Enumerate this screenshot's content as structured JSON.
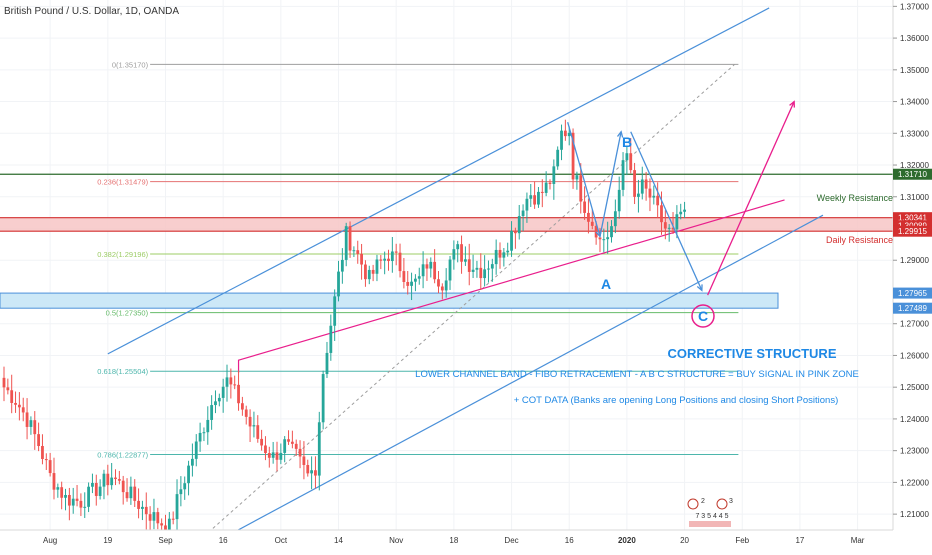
{
  "header": {
    "title": "British Pound / U.S. Dollar, 1D, OANDA"
  },
  "colors": {
    "up": "#26a69a",
    "down": "#ef5350",
    "channel": "#4a90d9",
    "pink": "#e91e8c",
    "resistance_green": "#2e6b2e",
    "resistance_red": "#d32f2f",
    "band_red": "#f7c6c6",
    "band_blue": "#cce8f7",
    "accent_blue": "#1e88e5"
  },
  "chart_data": {
    "type": "candlestick",
    "symbol": "GBPUSD",
    "ylim": [
      1.205,
      1.372
    ],
    "yticks": [
      {
        "value": 1.37,
        "label": "1.37000"
      },
      {
        "value": 1.36,
        "label": "1.36000"
      },
      {
        "value": 1.35,
        "label": "1.35000"
      },
      {
        "value": 1.34,
        "label": "1.34000"
      },
      {
        "value": 1.33,
        "label": "1.33000"
      },
      {
        "value": 1.32,
        "label": "1.32000"
      },
      {
        "value": 1.31,
        "label": "1.31000"
      },
      {
        "value": 1.3,
        "label": "1.30000"
      },
      {
        "value": 1.29,
        "label": "1.29000"
      },
      {
        "value": 1.27,
        "label": "1.27000"
      },
      {
        "value": 1.26,
        "label": "1.26000"
      },
      {
        "value": 1.25,
        "label": "1.25000"
      },
      {
        "value": 1.24,
        "label": "1.24000"
      },
      {
        "value": 1.23,
        "label": "1.23000"
      },
      {
        "value": 1.22,
        "label": "1.22000"
      },
      {
        "value": 1.21,
        "label": "1.21000"
      }
    ],
    "xticks": [
      {
        "i": 12,
        "label": "Aug",
        "bold": false
      },
      {
        "i": 27,
        "label": "19",
        "bold": false
      },
      {
        "i": 42,
        "label": "Sep",
        "bold": false
      },
      {
        "i": 57,
        "label": "16",
        "bold": false
      },
      {
        "i": 72,
        "label": "Oct",
        "bold": false
      },
      {
        "i": 87,
        "label": "14",
        "bold": false
      },
      {
        "i": 102,
        "label": "Nov",
        "bold": false
      },
      {
        "i": 117,
        "label": "18",
        "bold": false
      },
      {
        "i": 132,
        "label": "Dec",
        "bold": false
      },
      {
        "i": 147,
        "label": "16",
        "bold": false
      },
      {
        "i": 162,
        "label": "2020",
        "bold": true
      },
      {
        "i": 177,
        "label": "20",
        "bold": false
      },
      {
        "i": 192,
        "label": "Feb",
        "bold": false
      },
      {
        "i": 207,
        "label": "17",
        "bold": false
      },
      {
        "i": 222,
        "label": "Mar",
        "bold": false
      }
    ],
    "path_nodes": [
      [
        0,
        1.25
      ],
      [
        3,
        1.246
      ],
      [
        6,
        1.24
      ],
      [
        9,
        1.232
      ],
      [
        12,
        1.222
      ],
      [
        16,
        1.215
      ],
      [
        20,
        1.214
      ],
      [
        24,
        1.218
      ],
      [
        28,
        1.222
      ],
      [
        32,
        1.217
      ],
      [
        36,
        1.212
      ],
      [
        40,
        1.208
      ],
      [
        43,
        1.206
      ],
      [
        46,
        1.218
      ],
      [
        49,
        1.228
      ],
      [
        52,
        1.238
      ],
      [
        55,
        1.248
      ],
      [
        58,
        1.252
      ],
      [
        61,
        1.246
      ],
      [
        64,
        1.238
      ],
      [
        67,
        1.232
      ],
      [
        70,
        1.228
      ],
      [
        73,
        1.232
      ],
      [
        76,
        1.228
      ],
      [
        79,
        1.222
      ],
      [
        81,
        1.225
      ],
      [
        83,
        1.255
      ],
      [
        85,
        1.27
      ],
      [
        87,
        1.285
      ],
      [
        89,
        1.298
      ],
      [
        91,
        1.294
      ],
      [
        93,
        1.289
      ],
      [
        95,
        1.284
      ],
      [
        97,
        1.288
      ],
      [
        100,
        1.292
      ],
      [
        102,
        1.29
      ],
      [
        104,
        1.286
      ],
      [
        106,
        1.282
      ],
      [
        108,
        1.284
      ],
      [
        110,
        1.289
      ],
      [
        112,
        1.286
      ],
      [
        114,
        1.283
      ],
      [
        116,
        1.29
      ],
      [
        118,
        1.293
      ],
      [
        121,
        1.289
      ],
      [
        124,
        1.287
      ],
      [
        127,
        1.29
      ],
      [
        129,
        1.293
      ],
      [
        131,
        1.296
      ],
      [
        133,
        1.301
      ],
      [
        135,
        1.308
      ],
      [
        137,
        1.311
      ],
      [
        139,
        1.31
      ],
      [
        141,
        1.313
      ],
      [
        143,
        1.317
      ],
      [
        145,
        1.33
      ],
      [
        147,
        1.331
      ],
      [
        148,
        1.318
      ],
      [
        150,
        1.311
      ],
      [
        152,
        1.304
      ],
      [
        154,
        1.3
      ],
      [
        155,
        1.296
      ],
      [
        157,
        1.298
      ],
      [
        159,
        1.303
      ],
      [
        160,
        1.312
      ],
      [
        161,
        1.322
      ],
      [
        162,
        1.326
      ],
      [
        163,
        1.316
      ],
      [
        164,
        1.309
      ],
      [
        166,
        1.313
      ],
      [
        168,
        1.31
      ],
      [
        170,
        1.305
      ],
      [
        172,
        1.3
      ],
      [
        174,
        1.298
      ],
      [
        175,
        1.302
      ],
      [
        176,
        1.305
      ],
      [
        177,
        1.303
      ]
    ],
    "fibonacci": [
      {
        "label": "0(1.35170)",
        "value": 1.3517,
        "color": "#9e9e9e"
      },
      {
        "label": "0.236(1.31479)",
        "value": 1.31479,
        "color": "#e57373"
      },
      {
        "label": "0.382(1.29196)",
        "value": 1.29196,
        "color": "#9ccc65"
      },
      {
        "label": "0.5(1.27350)",
        "value": 1.2735,
        "color": "#66bb6a"
      },
      {
        "label": "0.618(1.25504)",
        "value": 1.25504,
        "color": "#4db6ac"
      },
      {
        "label": "0.786(1.22877)",
        "value": 1.22877,
        "color": "#4db6ac"
      }
    ],
    "levels": [
      {
        "value": 1.3171,
        "label": "1.31710",
        "color": "#2e6b2e"
      },
      {
        "value": 1.30341,
        "label": "1.30341",
        "color": "#d32f2f"
      },
      {
        "value": 1.30089,
        "label": "1.30089",
        "color": "#d32f2f"
      },
      {
        "value": 1.29915,
        "label": "1.29915",
        "color": "#d32f2f"
      },
      {
        "value": 1.27965,
        "label": "1.27965",
        "color": "#4a90d9"
      },
      {
        "value": 1.27489,
        "label": "1.27489",
        "color": "#4a90d9"
      }
    ],
    "annotations": {
      "weekly_resistance": "Weekly Resistance",
      "daily_resistance": "Daily Resistance",
      "wave_a": "A",
      "wave_b": "B",
      "wave_c": "C",
      "heading": "CORRECTIVE STRUCTURE",
      "note1": "LOWER CHANNEL BAND - FIBO RETRACEMENT - A B C STRUCTURE = BUY SIGNAL IN PINK ZONE",
      "note2": "+ COT DATA (Banks are opening Long Positions and closing Short Positions)",
      "badge_digits": "7 3 5 4 4 5",
      "badge_num1": "2",
      "badge_num2": "3"
    }
  }
}
